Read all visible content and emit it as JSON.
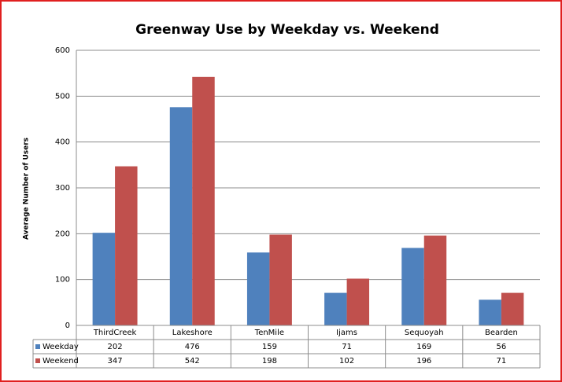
{
  "chart_data": {
    "type": "bar",
    "title": "Greenway Use by Weekday vs. Weekend",
    "y_label": "Average Number of Users",
    "categories": [
      "ThirdCreek",
      "Lakeshore",
      "TenMile",
      "Ijams",
      "Sequoyah",
      "Bearden"
    ],
    "series": [
      {
        "name": "Weekday",
        "color": "#4f81bd",
        "values": [
          202,
          476,
          159,
          71,
          169,
          56
        ]
      },
      {
        "name": "Weekend",
        "color": "#c0504d",
        "values": [
          347,
          542,
          198,
          102,
          196,
          71
        ]
      }
    ],
    "ylim": [
      0,
      600
    ],
    "yticks": [
      0,
      100,
      200,
      300,
      400,
      500,
      600
    ],
    "grid": true
  }
}
